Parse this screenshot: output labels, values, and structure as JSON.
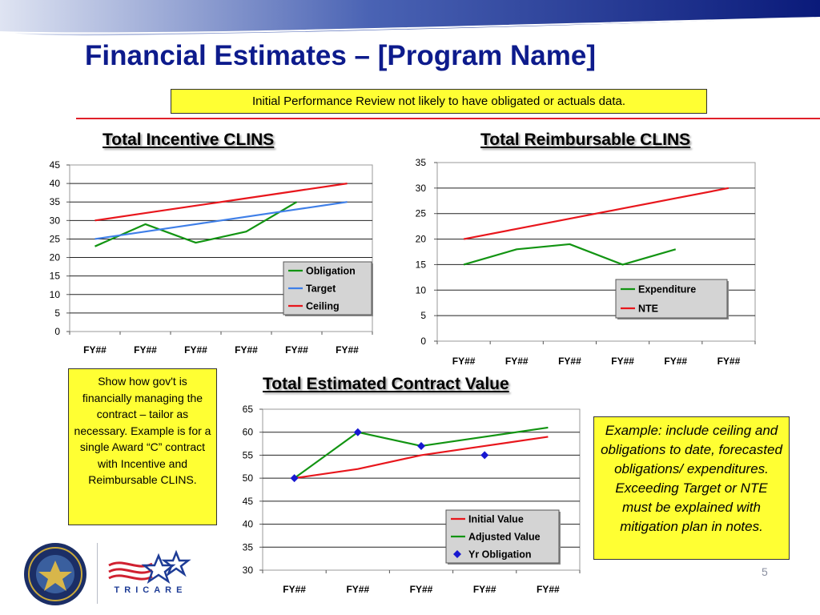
{
  "slide": {
    "title": "Financial Estimates – [Program Name]",
    "note_top": "Initial Performance Review not likely to have obligated or actuals data.",
    "left_note": "Show how gov't is financially managing the contract – tailor as necessary. Example is for a single Award “C” contract with Incentive and Reimbursable CLINS.",
    "right_note": "Example: include ceiling and obligations to date, forecasted obligations/ expenditures. Exceeding Target or NTE must be explained with mitigation plan in notes.",
    "page_number": "5",
    "logo_text": "TRICARE"
  },
  "colors": {
    "title": "#0d1b8c",
    "note_fill": "#ffff33",
    "divider": "#e0202a",
    "red": "#e8161c",
    "green": "#129412",
    "blue": "#3f7fe8",
    "marker": "#1818d0"
  },
  "chart_data": [
    {
      "type": "line",
      "title": "Total Incentive CLINS",
      "categories": [
        "FY##",
        "FY##",
        "FY##",
        "FY##",
        "FY##",
        "FY##"
      ],
      "ylim": [
        0,
        45
      ],
      "yticks": [
        0,
        5,
        10,
        15,
        20,
        25,
        30,
        35,
        40,
        45
      ],
      "grid": true,
      "legend_position": "bottom-right",
      "series": [
        {
          "name": "Obligation",
          "color": "#129412",
          "values": [
            23,
            29,
            24,
            27,
            35,
            null
          ]
        },
        {
          "name": "Target",
          "color": "#3f7fe8",
          "values": [
            25,
            27,
            29,
            31,
            33,
            35
          ]
        },
        {
          "name": "Ceiling",
          "color": "#e8161c",
          "values": [
            30,
            32,
            34,
            36,
            38,
            40
          ]
        }
      ]
    },
    {
      "type": "line",
      "title": "Total Reimbursable CLINS",
      "categories": [
        "FY##",
        "FY##",
        "FY##",
        "FY##",
        "FY##",
        "FY##"
      ],
      "ylim": [
        0,
        35
      ],
      "yticks": [
        0,
        5,
        10,
        15,
        20,
        25,
        30,
        35
      ],
      "grid": true,
      "legend_position": "bottom-right",
      "series": [
        {
          "name": "Expenditure",
          "color": "#129412",
          "values": [
            15,
            18,
            19,
            15,
            18,
            null
          ]
        },
        {
          "name": "NTE",
          "color": "#e8161c",
          "values": [
            20,
            22,
            24,
            26,
            28,
            30
          ]
        }
      ]
    },
    {
      "type": "line",
      "title": "Total Estimated Contract Value",
      "categories": [
        "FY##",
        "FY##",
        "FY##",
        "FY##",
        "FY##"
      ],
      "ylim": [
        30,
        65
      ],
      "yticks": [
        30,
        35,
        40,
        45,
        50,
        55,
        60,
        65
      ],
      "grid": true,
      "legend_position": "bottom-right",
      "series": [
        {
          "name": "Initial Value",
          "color": "#e8161c",
          "values": [
            50,
            52,
            55,
            57,
            59
          ]
        },
        {
          "name": "Adjusted Value",
          "color": "#129412",
          "values": [
            50,
            60,
            57,
            59,
            61
          ]
        },
        {
          "name": "Yr Obligation",
          "color": "#1818d0",
          "marker": "diamond",
          "values": [
            50,
            60,
            57,
            55,
            null
          ]
        }
      ]
    }
  ]
}
